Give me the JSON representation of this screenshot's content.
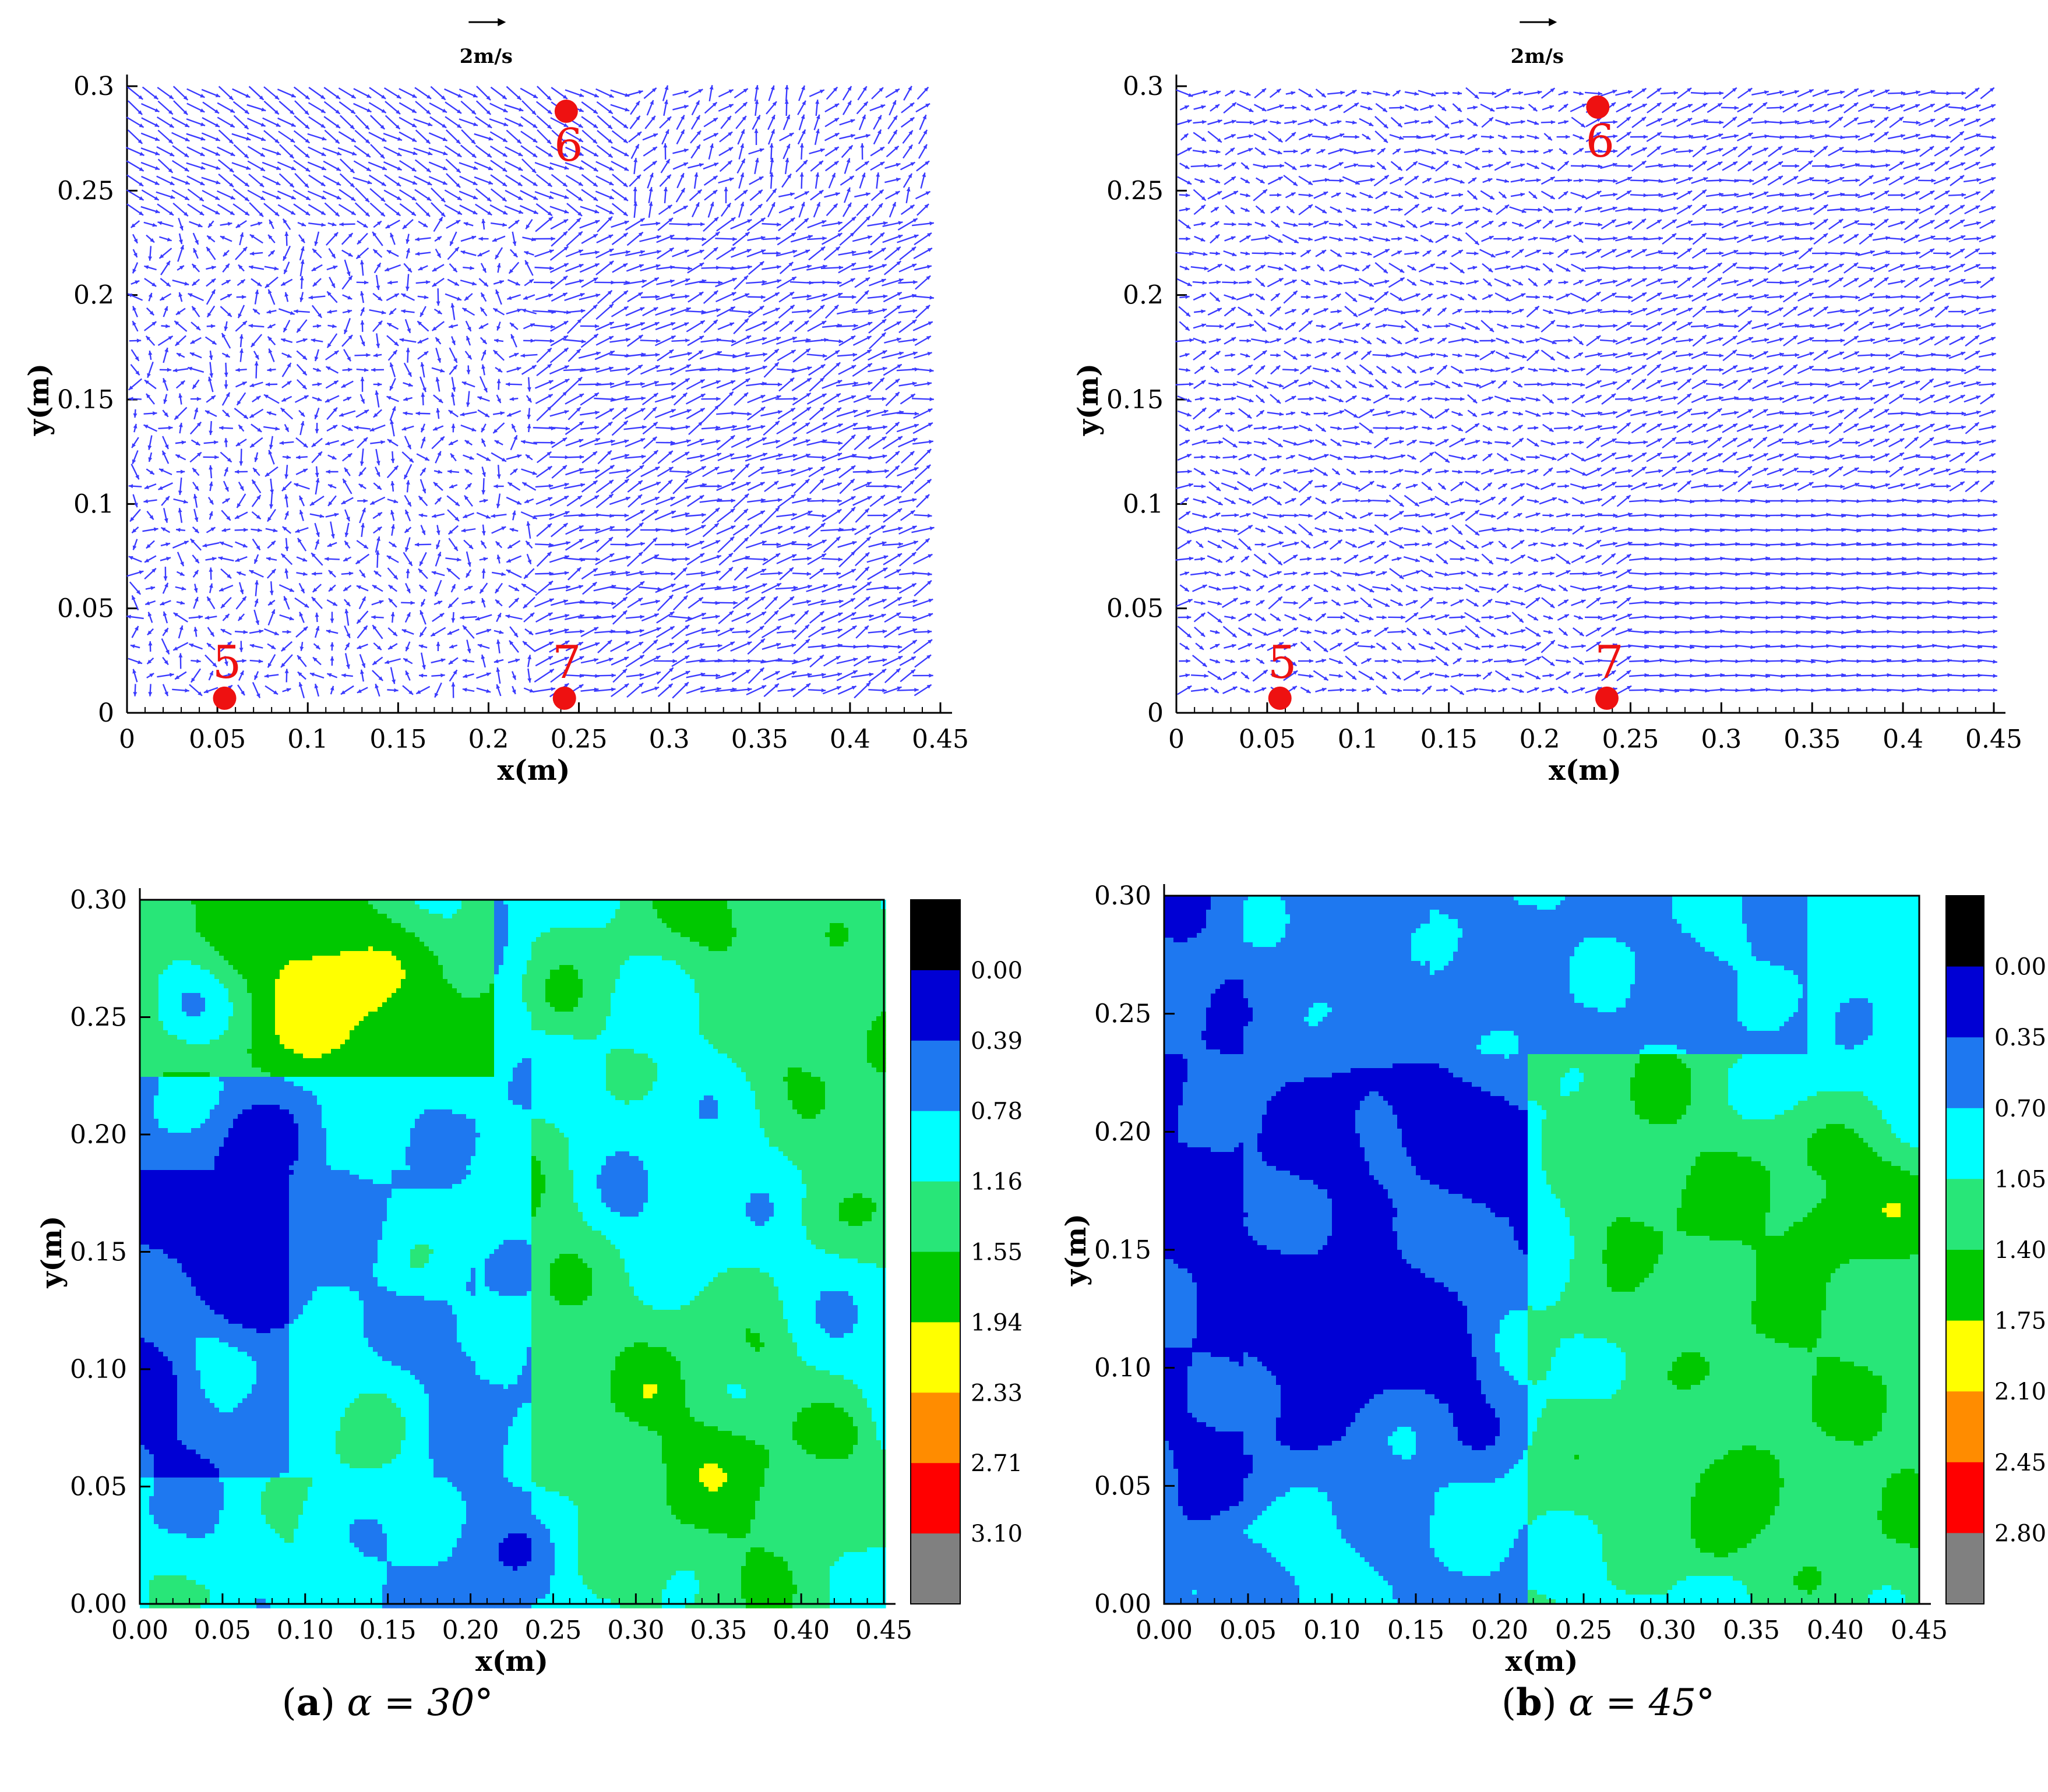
{
  "chart_data": [
    {
      "type": "quiver",
      "panel": "a",
      "xlabel": "x(m)",
      "ylabel": "y(m)",
      "xlim": [
        0,
        0.45
      ],
      "ylim": [
        0,
        0.3
      ],
      "xticks": [
        "0",
        "0.05",
        "0.1",
        "0.15",
        "0.2",
        "0.25",
        "0.3",
        "0.35",
        "0.4",
        "0.45"
      ],
      "yticks": [
        "0",
        "0.05",
        "0.1",
        "0.15",
        "0.2",
        "0.25",
        "0.3"
      ],
      "scale_label": "2m/s",
      "arrow_color": "#3b3bff",
      "points": [
        {
          "label": "5",
          "x": 0.054,
          "y": 0.007
        },
        {
          "label": "6",
          "x": 0.243,
          "y": 0.288
        },
        {
          "label": "7",
          "x": 0.242,
          "y": 0.007
        }
      ],
      "point_color": "#ee1111"
    },
    {
      "type": "quiver",
      "panel": "b",
      "xlabel": "x(m)",
      "ylabel": "y(m)",
      "xlim": [
        0,
        0.45
      ],
      "ylim": [
        0,
        0.3
      ],
      "xticks": [
        "0",
        "0.05",
        "0.1",
        "0.15",
        "0.2",
        "0.25",
        "0.3",
        "0.35",
        "0.4",
        "0.45"
      ],
      "yticks": [
        "0",
        "0.05",
        "0.1",
        "0.15",
        "0.2",
        "0.25",
        "0.3"
      ],
      "scale_label": "2m/s",
      "arrow_color": "#3b3bff",
      "points": [
        {
          "label": "5",
          "x": 0.057,
          "y": 0.007
        },
        {
          "label": "6",
          "x": 0.232,
          "y": 0.29
        },
        {
          "label": "7",
          "x": 0.237,
          "y": 0.007
        }
      ],
      "point_color": "#ee1111"
    },
    {
      "type": "heatmap",
      "panel": "a",
      "xlabel": "x(m)",
      "ylabel": "y(m)",
      "xlim": [
        0,
        0.45
      ],
      "ylim": [
        0,
        0.3
      ],
      "xticks": [
        "0.00",
        "0.05",
        "0.10",
        "0.15",
        "0.20",
        "0.25",
        "0.30",
        "0.35",
        "0.40",
        "0.45"
      ],
      "yticks": [
        "0.00",
        "0.05",
        "0.10",
        "0.15",
        "0.20",
        "0.25",
        "0.30"
      ],
      "colorbar_levels": [
        "0.00",
        "0.39",
        "0.78",
        "1.16",
        "1.55",
        "1.94",
        "2.33",
        "2.71",
        "3.10"
      ],
      "colorbar_colors": [
        "#000000",
        "#0000d4",
        "#1e78f0",
        "#00ffff",
        "#28e678",
        "#00c800",
        "#ffff00",
        "#ff8c00",
        "#ff0000",
        "#808080"
      ]
    },
    {
      "type": "heatmap",
      "panel": "b",
      "xlabel": "x(m)",
      "ylabel": "y(m)",
      "xlim": [
        0,
        0.45
      ],
      "ylim": [
        0,
        0.3
      ],
      "xticks": [
        "0.00",
        "0.05",
        "0.10",
        "0.15",
        "0.20",
        "0.25",
        "0.30",
        "0.35",
        "0.40",
        "0.45"
      ],
      "yticks": [
        "0.00",
        "0.05",
        "0.10",
        "0.15",
        "0.20",
        "0.25",
        "0.30"
      ],
      "colorbar_levels": [
        "0.00",
        "0.35",
        "0.70",
        "1.05",
        "1.40",
        "1.75",
        "2.10",
        "2.45",
        "2.80"
      ],
      "colorbar_colors": [
        "#000000",
        "#0000d4",
        "#1e78f0",
        "#00ffff",
        "#28e678",
        "#00c800",
        "#ffff00",
        "#ff8c00",
        "#ff0000",
        "#808080"
      ]
    }
  ],
  "captions": {
    "a": {
      "letter": "a",
      "rest": " α = 30°"
    },
    "b": {
      "letter": "b",
      "rest": " α = 45°"
    }
  }
}
